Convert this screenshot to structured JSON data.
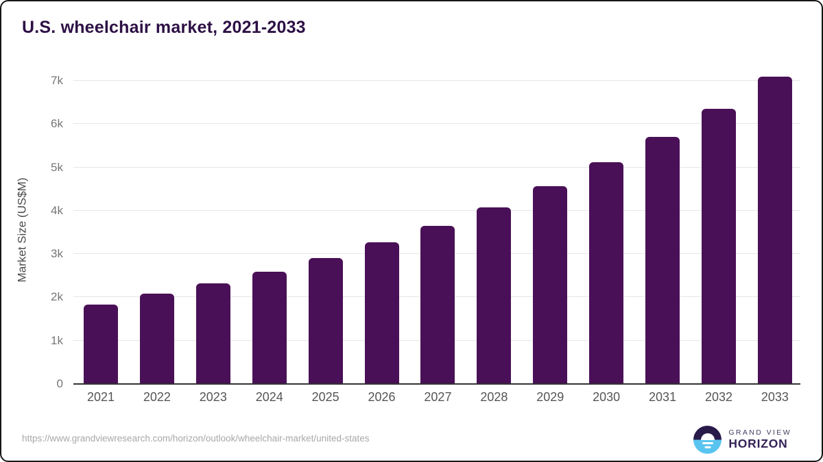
{
  "title": "U.S. wheelchair market, 2021-2033",
  "source_url": "https://www.grandviewresearch.com/horizon/outlook/wheelchair-market/united-states",
  "logo": {
    "line1": "GRAND VIEW",
    "line2": "HORIZON"
  },
  "colors": {
    "bar": "#4a1057",
    "title_text": "#2d1045",
    "gridline": "#e6e6e6",
    "axis_line": "#333333",
    "tick_text": "#757575",
    "x_label_text": "#555555",
    "axis_title_text": "#4a4a4a",
    "url_text": "#a8a8a8",
    "logo_dark": "#291a4a",
    "logo_blue": "#5ac4f0"
  },
  "chart_data": {
    "type": "bar",
    "title": "U.S. wheelchair market, 2021-2033",
    "categories": [
      "2021",
      "2022",
      "2023",
      "2024",
      "2025",
      "2026",
      "2027",
      "2028",
      "2029",
      "2030",
      "2031",
      "2032",
      "2033"
    ],
    "values": [
      1830,
      2080,
      2320,
      2590,
      2910,
      3270,
      3650,
      4080,
      4570,
      5120,
      5700,
      6350,
      7090
    ],
    "xlabel": "",
    "ylabel": "Market Size (US$M)",
    "ylim": [
      0,
      7000
    ],
    "ytick_values": [
      0,
      1000,
      2000,
      3000,
      4000,
      5000,
      6000,
      7000
    ],
    "ytick_labels": [
      "0",
      "1k",
      "2k",
      "3k",
      "4k",
      "5k",
      "6k",
      "7k"
    ],
    "grid": "horizontal",
    "legend": "none",
    "bar_color": "#4a1057"
  }
}
